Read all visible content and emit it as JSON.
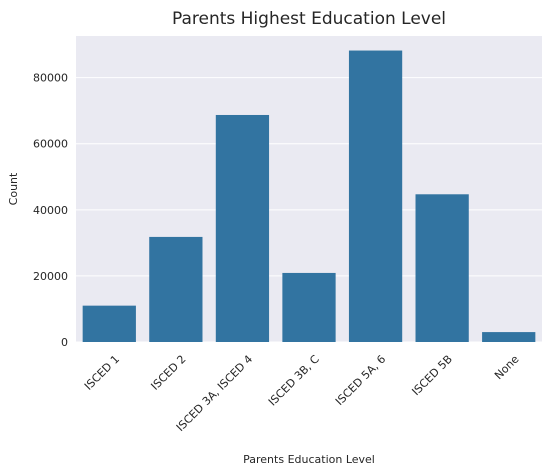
{
  "chart_data": {
    "type": "bar",
    "title": "Parents Highest Education Level",
    "xlabel": "Parents Education Level",
    "ylabel": "Count",
    "categories": [
      "ISCED 1",
      "ISCED 2",
      "ISCED 3A, ISCED 4",
      "ISCED 3B, C",
      "ISCED 5A, 6",
      "ISCED 5B",
      "None"
    ],
    "values": [
      11000,
      31800,
      68700,
      20900,
      88200,
      44700,
      3000
    ],
    "yticks": [
      0,
      20000,
      40000,
      60000,
      80000
    ],
    "ylim": [
      0,
      92600
    ],
    "grid": true,
    "colors": {
      "bar": "#3274a1",
      "background": "#eaeaf2",
      "grid": "#ffffff"
    }
  }
}
